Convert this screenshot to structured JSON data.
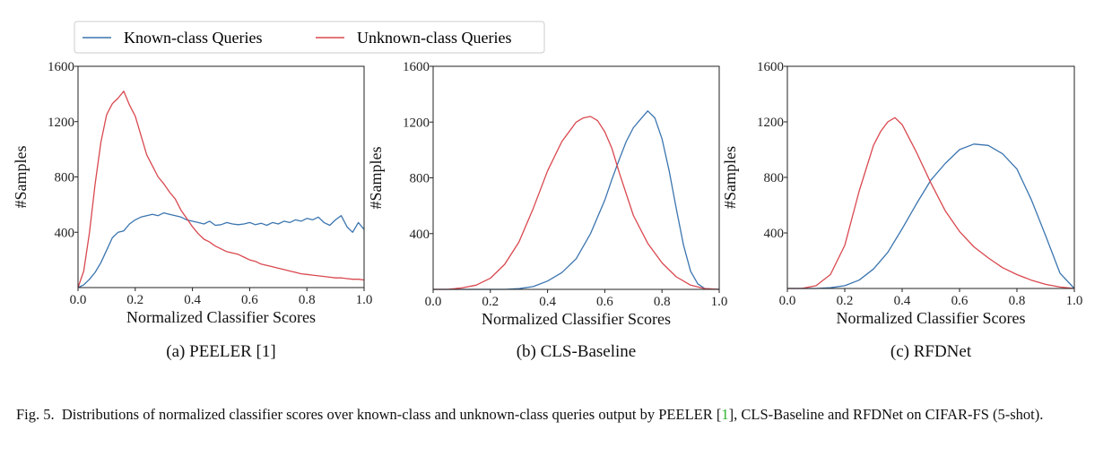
{
  "legend": [
    {
      "label": "Known-class Queries",
      "color": "#3b75af"
    },
    {
      "label": "Unknown-class Queries",
      "color": "#d9484f"
    }
  ],
  "chart_data": [
    {
      "type": "line",
      "subcaption": "(a) PEELER [1]",
      "xlabel": "Normalized Classifier Scores",
      "ylabel": "#Samples",
      "xlim": [
        0.0,
        1.0
      ],
      "ylim": [
        0,
        1600
      ],
      "xticks": [
        "0.0",
        "0.2",
        "0.4",
        "0.6",
        "0.8",
        "1.0"
      ],
      "yticks": [
        "400",
        "800",
        "1200",
        "1600"
      ],
      "series": [
        {
          "name": "Known-class Queries",
          "color": "#3b75af",
          "x": [
            0.0,
            0.02,
            0.04,
            0.06,
            0.08,
            0.1,
            0.12,
            0.14,
            0.16,
            0.18,
            0.2,
            0.22,
            0.24,
            0.26,
            0.28,
            0.3,
            0.32,
            0.34,
            0.36,
            0.38,
            0.4,
            0.42,
            0.44,
            0.46,
            0.48,
            0.5,
            0.52,
            0.54,
            0.56,
            0.58,
            0.6,
            0.62,
            0.64,
            0.66,
            0.68,
            0.7,
            0.72,
            0.74,
            0.76,
            0.78,
            0.8,
            0.82,
            0.84,
            0.86,
            0.88,
            0.9,
            0.92,
            0.94,
            0.96,
            0.98,
            1.0
          ],
          "y": [
            0,
            20,
            60,
            110,
            180,
            270,
            360,
            400,
            410,
            460,
            490,
            510,
            520,
            530,
            520,
            540,
            530,
            520,
            510,
            490,
            480,
            470,
            460,
            480,
            450,
            455,
            470,
            460,
            455,
            460,
            470,
            455,
            465,
            450,
            470,
            460,
            480,
            470,
            490,
            480,
            500,
            490,
            510,
            470,
            450,
            490,
            520,
            440,
            400,
            470,
            420
          ]
        },
        {
          "name": "Unknown-class Queries",
          "color": "#d9484f",
          "x": [
            0.0,
            0.02,
            0.04,
            0.06,
            0.08,
            0.1,
            0.12,
            0.14,
            0.16,
            0.18,
            0.2,
            0.22,
            0.24,
            0.26,
            0.28,
            0.3,
            0.32,
            0.34,
            0.36,
            0.38,
            0.4,
            0.42,
            0.44,
            0.46,
            0.48,
            0.5,
            0.52,
            0.54,
            0.56,
            0.58,
            0.6,
            0.62,
            0.64,
            0.66,
            0.68,
            0.7,
            0.72,
            0.74,
            0.76,
            0.78,
            0.8,
            0.82,
            0.84,
            0.86,
            0.88,
            0.9,
            0.92,
            0.94,
            0.96,
            0.98,
            1.0
          ],
          "y": [
            0,
            120,
            400,
            750,
            1050,
            1250,
            1330,
            1370,
            1420,
            1320,
            1240,
            1100,
            960,
            880,
            800,
            750,
            690,
            640,
            560,
            500,
            440,
            390,
            350,
            330,
            300,
            280,
            260,
            250,
            240,
            220,
            200,
            190,
            170,
            160,
            150,
            140,
            130,
            120,
            110,
            100,
            95,
            90,
            85,
            80,
            75,
            70,
            70,
            65,
            60,
            60,
            55
          ]
        }
      ]
    },
    {
      "type": "line",
      "subcaption": "(b) CLS-Baseline",
      "xlabel": "Normalized Classifier Scores",
      "ylabel": "#Samples",
      "xlim": [
        0.0,
        1.0
      ],
      "ylim": [
        0,
        1600
      ],
      "xticks": [
        "0.0",
        "0.2",
        "0.4",
        "0.6",
        "0.8",
        "1.0"
      ],
      "yticks": [
        "400",
        "800",
        "1200",
        "1600"
      ],
      "series": [
        {
          "name": "Known-class Queries",
          "color": "#3b75af",
          "x": [
            0.0,
            0.05,
            0.1,
            0.15,
            0.2,
            0.25,
            0.3,
            0.35,
            0.4,
            0.45,
            0.5,
            0.55,
            0.6,
            0.625,
            0.65,
            0.675,
            0.7,
            0.725,
            0.75,
            0.775,
            0.8,
            0.825,
            0.85,
            0.875,
            0.9,
            0.925,
            0.95,
            1.0
          ],
          "y": [
            0,
            0,
            0,
            0,
            0,
            0,
            5,
            20,
            60,
            120,
            220,
            400,
            640,
            790,
            930,
            1060,
            1160,
            1220,
            1280,
            1230,
            1080,
            850,
            580,
            320,
            130,
            40,
            5,
            0
          ]
        },
        {
          "name": "Unknown-class Queries",
          "color": "#d9484f",
          "x": [
            0.0,
            0.05,
            0.1,
            0.15,
            0.2,
            0.25,
            0.3,
            0.35,
            0.4,
            0.45,
            0.5,
            0.525,
            0.55,
            0.575,
            0.6,
            0.625,
            0.65,
            0.7,
            0.75,
            0.8,
            0.85,
            0.9,
            0.95,
            1.0
          ],
          "y": [
            0,
            0,
            10,
            30,
            80,
            180,
            340,
            580,
            850,
            1060,
            1200,
            1230,
            1240,
            1210,
            1130,
            1010,
            840,
            530,
            330,
            190,
            90,
            30,
            5,
            0
          ]
        }
      ]
    },
    {
      "type": "line",
      "subcaption": "(c) RFDNet",
      "xlabel": "Normalized Classifier Scores",
      "ylabel": "#Samples",
      "xlim": [
        0.0,
        1.0
      ],
      "ylim": [
        0,
        1600
      ],
      "xticks": [
        "0.0",
        "0.2",
        "0.4",
        "0.6",
        "0.8",
        "1.0"
      ],
      "yticks": [
        "400",
        "800",
        "1200",
        "1600"
      ],
      "series": [
        {
          "name": "Known-class Queries",
          "color": "#3b75af",
          "x": [
            0.0,
            0.1,
            0.15,
            0.2,
            0.25,
            0.3,
            0.35,
            0.4,
            0.45,
            0.5,
            0.55,
            0.6,
            0.65,
            0.7,
            0.75,
            0.8,
            0.85,
            0.9,
            0.95,
            1.0
          ],
          "y": [
            0,
            0,
            5,
            20,
            60,
            140,
            260,
            430,
            610,
            780,
            900,
            1000,
            1040,
            1030,
            970,
            860,
            640,
            380,
            110,
            0
          ]
        },
        {
          "name": "Unknown-class Queries",
          "color": "#d9484f",
          "x": [
            0.0,
            0.05,
            0.1,
            0.15,
            0.2,
            0.25,
            0.3,
            0.325,
            0.35,
            0.375,
            0.4,
            0.45,
            0.5,
            0.55,
            0.6,
            0.65,
            0.7,
            0.75,
            0.8,
            0.85,
            0.9,
            0.95,
            1.0
          ],
          "y": [
            0,
            0,
            20,
            100,
            310,
            700,
            1030,
            1130,
            1200,
            1230,
            1180,
            980,
            760,
            560,
            410,
            300,
            220,
            150,
            100,
            60,
            30,
            10,
            0
          ]
        }
      ]
    }
  ],
  "caption": {
    "label": "Fig. 5.",
    "text_before": "Distributions of normalized classifier scores over known-class and unknown-class queries output by PEELER [",
    "ref": "1",
    "text_after": "], CLS-Baseline and RFDNet on CIFAR-FS (5-shot)."
  }
}
